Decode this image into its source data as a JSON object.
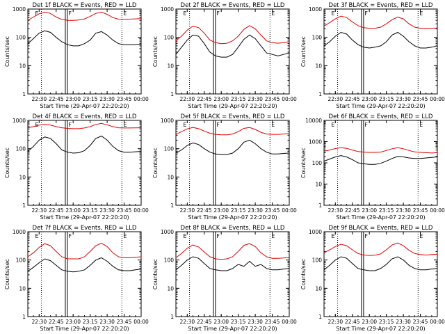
{
  "figure": {
    "background": "#ffffff",
    "colors": {
      "events": "#000000",
      "lld": "#e00000",
      "axes": "#000000"
    }
  },
  "common": {
    "xlabel": "Start Time (29-Apr-07 22:20:20)",
    "ylabel": "Counts/sec",
    "x_ticks": [
      "22:30",
      "22:45",
      "23:00",
      "23:15",
      "23:30",
      "23:45",
      "00:00"
    ],
    "x_tick_minutes": [
      10,
      25,
      40,
      55,
      70,
      85,
      100
    ],
    "x_range_minutes": [
      0,
      100
    ],
    "y_scale": "log",
    "e_marker": "E",
    "f_marker": "F",
    "events_minutes": [
      12,
      34,
      83
    ]
  },
  "chart_data": [
    {
      "type": "line",
      "title": "Det 1f BLACK = Events, RED = LLD",
      "ylim": [
        1,
        1000
      ],
      "y_ticks": [
        "1",
        "10",
        "100",
        "1000"
      ],
      "x": [
        0,
        5,
        10,
        15,
        20,
        25,
        30,
        35,
        40,
        45,
        50,
        55,
        60,
        65,
        70,
        75,
        80,
        85,
        90,
        95,
        100
      ],
      "series": [
        {
          "name": "LLD",
          "values": [
            400,
            520,
            680,
            780,
            700,
            520,
            430,
            400,
            400,
            410,
            450,
            550,
            700,
            780,
            650,
            500,
            440,
            430,
            440,
            450,
            460
          ]
        },
        {
          "name": "Events",
          "values": [
            60,
            90,
            140,
            170,
            150,
            100,
            70,
            55,
            50,
            50,
            60,
            80,
            140,
            160,
            120,
            80,
            60,
            55,
            55,
            55,
            58
          ]
        }
      ]
    },
    {
      "type": "line",
      "title": "Det 2f BLACK = Events, RED = LLD",
      "ylim": [
        1,
        1000
      ],
      "y_ticks": [
        "1",
        "10",
        "100",
        "1000"
      ],
      "x": [
        0,
        5,
        10,
        15,
        20,
        25,
        30,
        35,
        40,
        45,
        50,
        55,
        60,
        65,
        70,
        75,
        80,
        85,
        90,
        95,
        100
      ],
      "series": [
        {
          "name": "LLD",
          "values": [
            75,
            110,
            180,
            250,
            220,
            140,
            80,
            65,
            60,
            62,
            75,
            110,
            190,
            260,
            200,
            120,
            75,
            65,
            62,
            65,
            70
          ]
        },
        {
          "name": "Events",
          "values": [
            25,
            45,
            80,
            120,
            110,
            60,
            30,
            22,
            20,
            20,
            25,
            45,
            85,
            120,
            90,
            50,
            28,
            25,
            22,
            25,
            28
          ]
        }
      ]
    },
    {
      "type": "line",
      "title": "Det 3f BLACK = Events, RED = LLD",
      "ylim": [
        1,
        1000
      ],
      "y_ticks": [
        "1",
        "10",
        "100",
        "1000"
      ],
      "x": [
        0,
        5,
        10,
        15,
        20,
        25,
        30,
        35,
        40,
        45,
        50,
        55,
        60,
        65,
        70,
        75,
        80,
        85,
        90,
        95,
        100
      ],
      "series": [
        {
          "name": "LLD",
          "values": [
            250,
            330,
            450,
            560,
            500,
            350,
            260,
            220,
            210,
            210,
            230,
            300,
            420,
            520,
            450,
            300,
            230,
            210,
            210,
            210,
            215
          ]
        },
        {
          "name": "Events",
          "values": [
            50,
            70,
            110,
            150,
            130,
            80,
            55,
            45,
            42,
            45,
            50,
            70,
            120,
            150,
            110,
            70,
            50,
            42,
            42,
            45,
            50
          ]
        }
      ]
    },
    {
      "type": "line",
      "title": "Det 4f BLACK = Events, RED = LLD",
      "ylim": [
        1,
        1000
      ],
      "y_ticks": [
        "1",
        "10",
        "100",
        "1000"
      ],
      "x": [
        0,
        5,
        10,
        15,
        20,
        25,
        30,
        35,
        40,
        45,
        50,
        55,
        60,
        65,
        70,
        75,
        80,
        85,
        90,
        95,
        100
      ],
      "series": [
        {
          "name": "LLD",
          "values": [
            550,
            600,
            680,
            720,
            680,
            600,
            550,
            520,
            510,
            510,
            540,
            600,
            720,
            780,
            700,
            600,
            550,
            540,
            540,
            545,
            550
          ]
        },
        {
          "name": "Events",
          "values": [
            80,
            120,
            200,
            260,
            230,
            150,
            90,
            75,
            70,
            72,
            85,
            130,
            230,
            280,
            200,
            120,
            85,
            75,
            75,
            78,
            80
          ]
        }
      ]
    },
    {
      "type": "line",
      "title": "Det 5f BLACK = Events, RED = LLD",
      "ylim": [
        1,
        1000
      ],
      "y_ticks": [
        "1",
        "10",
        "100",
        "1000"
      ],
      "x": [
        0,
        5,
        10,
        15,
        20,
        25,
        30,
        35,
        40,
        45,
        50,
        55,
        60,
        65,
        70,
        75,
        80,
        85,
        90,
        95,
        100
      ],
      "series": [
        {
          "name": "LLD",
          "values": [
            320,
            400,
            500,
            560,
            510,
            420,
            350,
            320,
            310,
            310,
            330,
            400,
            520,
            560,
            480,
            380,
            330,
            320,
            320,
            330,
            340
          ]
        },
        {
          "name": "Events",
          "values": [
            70,
            90,
            130,
            160,
            140,
            100,
            75,
            65,
            62,
            62,
            70,
            100,
            170,
            200,
            150,
            100,
            75,
            65,
            65,
            68,
            70
          ]
        }
      ]
    },
    {
      "type": "line",
      "title": "Det 6f BLACK = Events, RED = LLD",
      "ylim": [
        1,
        10000
      ],
      "y_ticks": [
        "1",
        "10",
        "100",
        "1000",
        "10000"
      ],
      "x": [
        0,
        5,
        10,
        15,
        20,
        25,
        30,
        35,
        40,
        45,
        50,
        55,
        60,
        65,
        70,
        75,
        80,
        85,
        90,
        95,
        100
      ],
      "series": [
        {
          "name": "LLD",
          "values": [
            350,
            400,
            470,
            520,
            480,
            400,
            340,
            320,
            310,
            310,
            320,
            380,
            460,
            520,
            460,
            380,
            330,
            310,
            300,
            290,
            300
          ]
        },
        {
          "name": "Events",
          "values": [
            120,
            150,
            190,
            220,
            190,
            140,
            100,
            90,
            85,
            85,
            95,
            120,
            160,
            200,
            190,
            170,
            160,
            160,
            170,
            180,
            190
          ]
        }
      ]
    },
    {
      "type": "line",
      "title": "Det 7f BLACK = Events, RED = LLD",
      "ylim": [
        1,
        1000
      ],
      "y_ticks": [
        "1",
        "10",
        "100",
        "1000"
      ],
      "x": [
        0,
        5,
        10,
        15,
        20,
        25,
        30,
        35,
        40,
        45,
        50,
        55,
        60,
        65,
        70,
        75,
        80,
        85,
        90,
        95,
        100
      ],
      "series": [
        {
          "name": "LLD",
          "values": [
            130,
            180,
            280,
            380,
            320,
            200,
            130,
            110,
            110,
            110,
            130,
            200,
            320,
            390,
            300,
            180,
            130,
            120,
            120,
            125,
            130
          ]
        },
        {
          "name": "Events",
          "values": [
            40,
            55,
            80,
            110,
            95,
            65,
            45,
            40,
            38,
            40,
            45,
            65,
            100,
            120,
            90,
            60,
            45,
            42,
            42,
            45,
            48
          ]
        }
      ]
    },
    {
      "type": "line",
      "title": "Det 8f BLACK = Events, RED = LLD",
      "ylim": [
        1,
        1000
      ],
      "y_ticks": [
        "1",
        "10",
        "100",
        "1000"
      ],
      "x": [
        0,
        5,
        10,
        15,
        20,
        25,
        30,
        35,
        40,
        45,
        50,
        55,
        60,
        65,
        70,
        75,
        80,
        85,
        90,
        95,
        100
      ],
      "series": [
        {
          "name": "LLD",
          "values": [
            120,
            170,
            260,
            340,
            290,
            190,
            130,
            110,
            105,
            110,
            130,
            200,
            330,
            380,
            300,
            180,
            130,
            115,
            115,
            118,
            120
          ]
        },
        {
          "name": "Events",
          "values": [
            45,
            65,
            100,
            130,
            115,
            75,
            50,
            45,
            42,
            42,
            50,
            70,
            60,
            90,
            60,
            70,
            50,
            45,
            45,
            48,
            50
          ]
        }
      ]
    },
    {
      "type": "line",
      "title": "Det 9f BLACK = Events, RED = LLD",
      "ylim": [
        1,
        1000
      ],
      "y_ticks": [
        "1",
        "10",
        "100",
        "1000"
      ],
      "x": [
        0,
        5,
        10,
        15,
        20,
        25,
        30,
        35,
        40,
        45,
        50,
        55,
        60,
        65,
        70,
        75,
        80,
        85,
        90,
        95,
        100
      ],
      "series": [
        {
          "name": "LLD",
          "values": [
            180,
            230,
            300,
            360,
            320,
            230,
            170,
            150,
            145,
            148,
            165,
            230,
            340,
            400,
            320,
            220,
            170,
            155,
            150,
            155,
            160
          ]
        },
        {
          "name": "Events",
          "values": [
            45,
            65,
            100,
            130,
            115,
            75,
            50,
            45,
            42,
            42,
            50,
            70,
            110,
            130,
            100,
            65,
            50,
            45,
            45,
            48,
            50
          ]
        }
      ]
    }
  ]
}
